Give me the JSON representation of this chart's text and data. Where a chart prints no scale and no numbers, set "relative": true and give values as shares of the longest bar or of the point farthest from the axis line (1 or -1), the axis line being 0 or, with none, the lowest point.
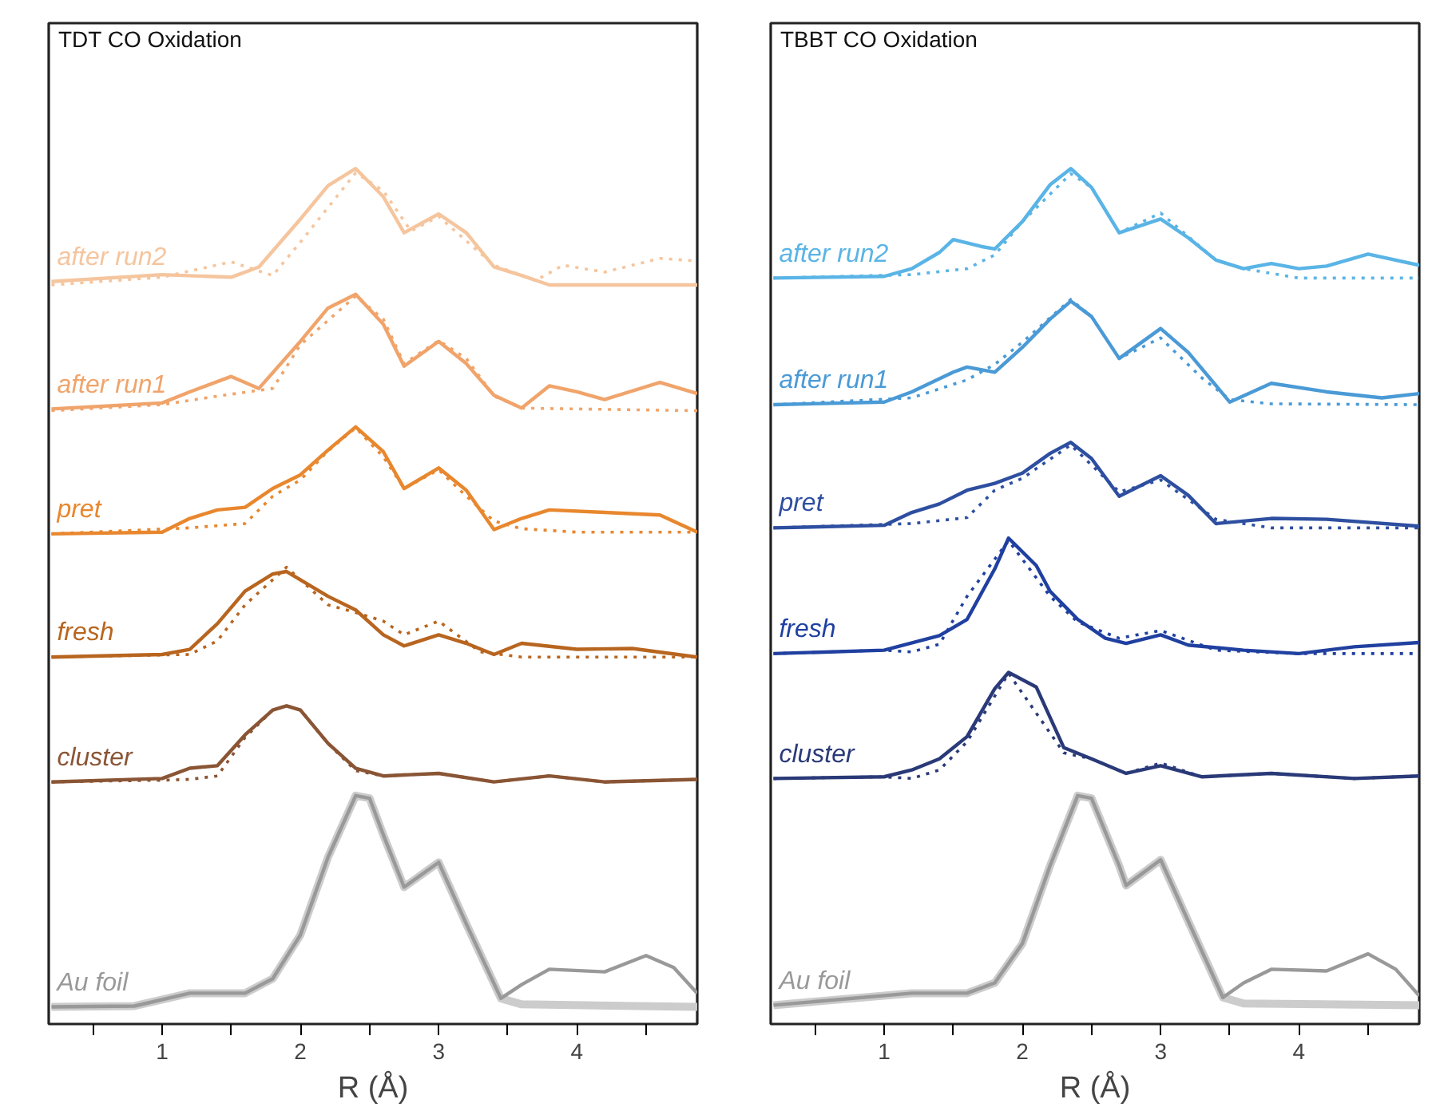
{
  "chart_data": [
    {
      "type": "line",
      "title": "TDT CO Oxidation",
      "xlabel": "R (Å)",
      "relative": true,
      "grid": false,
      "tick_labels": "x",
      "xlim": [
        0.18,
        4.87
      ],
      "xticks": [
        {
          "value": 0.5,
          "label": null
        },
        1,
        {
          "value": 1.5,
          "label": null
        },
        2,
        {
          "value": 2.5,
          "label": null
        },
        3,
        {
          "value": 3.5,
          "label": null
        },
        4,
        {
          "value": 4.5,
          "label": null
        }
      ],
      "series": [
        {
          "name": "after run2",
          "color": "#f5c59e",
          "line_style": "solid",
          "x": [
            0.2,
            1.0,
            1.5,
            1.7,
            2.0,
            2.2,
            2.4,
            2.6,
            2.75,
            3.0,
            3.2,
            3.4,
            3.6,
            3.8,
            4.2,
            4.87
          ],
          "values": [
            0.868,
            0.876,
            0.873,
            0.885,
            0.941,
            0.98,
            1.0,
            0.967,
            0.925,
            0.947,
            0.925,
            0.885,
            0.875,
            0.864,
            0.864,
            0.864
          ]
        },
        {
          "color": "#f5c59e",
          "line_style": "dotted",
          "x": [
            0.2,
            1.0,
            1.5,
            1.8,
            2.0,
            2.4,
            2.6,
            2.8,
            3.0,
            3.4,
            3.7,
            3.9,
            4.2,
            4.6,
            4.87
          ],
          "values": [
            0.864,
            0.873,
            0.891,
            0.875,
            0.914,
            0.995,
            0.974,
            0.927,
            0.944,
            0.887,
            0.869,
            0.887,
            0.879,
            0.895,
            0.892
          ]
        },
        {
          "name": "after run1",
          "color": "#f0a46b",
          "line_style": "solid",
          "x": [
            0.2,
            1.0,
            1.2,
            1.5,
            1.7,
            2.0,
            2.2,
            2.4,
            2.6,
            2.75,
            3.0,
            3.2,
            3.4,
            3.6,
            3.8,
            4.0,
            4.2,
            4.6,
            4.87
          ],
          "values": [
            0.719,
            0.726,
            0.739,
            0.757,
            0.743,
            0.798,
            0.837,
            0.853,
            0.818,
            0.769,
            0.798,
            0.772,
            0.735,
            0.72,
            0.746,
            0.739,
            0.73,
            0.75,
            0.737
          ]
        },
        {
          "color": "#f0a46b",
          "line_style": "dotted",
          "x": [
            0.2,
            1.0,
            1.4,
            1.8,
            2.0,
            2.4,
            2.6,
            2.75,
            3.0,
            3.2,
            3.4,
            3.6,
            4.0,
            4.87
          ],
          "values": [
            0.717,
            0.724,
            0.734,
            0.743,
            0.794,
            0.851,
            0.824,
            0.772,
            0.799,
            0.778,
            0.734,
            0.72,
            0.719,
            0.717
          ]
        },
        {
          "name": "pret",
          "color": "#e8872e",
          "line_style": "solid",
          "x": [
            0.2,
            1.0,
            1.2,
            1.4,
            1.6,
            1.8,
            2.0,
            2.2,
            2.4,
            2.6,
            2.75,
            3.0,
            3.2,
            3.4,
            3.6,
            3.8,
            4.2,
            4.6,
            4.87
          ],
          "values": [
            0.573,
            0.575,
            0.591,
            0.601,
            0.604,
            0.626,
            0.642,
            0.671,
            0.698,
            0.669,
            0.626,
            0.65,
            0.624,
            0.578,
            0.591,
            0.601,
            0.598,
            0.595,
            0.575
          ]
        },
        {
          "color": "#e8872e",
          "line_style": "dotted",
          "x": [
            0.2,
            1.2,
            1.6,
            1.8,
            2.0,
            2.2,
            2.4,
            2.6,
            2.75,
            3.0,
            3.2,
            3.4,
            3.6,
            4.0,
            4.87
          ],
          "values": [
            0.573,
            0.58,
            0.585,
            0.617,
            0.636,
            0.67,
            0.697,
            0.663,
            0.626,
            0.648,
            0.617,
            0.588,
            0.579,
            0.575,
            0.575
          ]
        },
        {
          "name": "fresh",
          "color": "#b8651f",
          "line_style": "solid",
          "x": [
            0.2,
            1.0,
            1.2,
            1.4,
            1.6,
            1.8,
            1.9,
            2.2,
            2.4,
            2.6,
            2.75,
            3.0,
            3.2,
            3.4,
            3.6,
            4.0,
            4.4,
            4.87
          ],
          "values": [
            0.429,
            0.432,
            0.438,
            0.468,
            0.506,
            0.526,
            0.529,
            0.5,
            0.484,
            0.455,
            0.442,
            0.455,
            0.445,
            0.432,
            0.445,
            0.438,
            0.439,
            0.429
          ]
        },
        {
          "color": "#b8651f",
          "line_style": "dotted",
          "x": [
            0.2,
            1.2,
            1.4,
            1.6,
            1.9,
            2.2,
            2.4,
            2.6,
            2.75,
            3.0,
            3.3,
            3.6,
            4.87
          ],
          "values": [
            0.429,
            0.432,
            0.448,
            0.49,
            0.534,
            0.49,
            0.481,
            0.471,
            0.455,
            0.471,
            0.435,
            0.429,
            0.429
          ]
        },
        {
          "name": "cluster",
          "color": "#8a5535",
          "line_style": "solid",
          "x": [
            0.2,
            1.0,
            1.2,
            1.4,
            1.6,
            1.8,
            1.9,
            2.0,
            2.2,
            2.4,
            2.6,
            3.0,
            3.4,
            3.8,
            4.2,
            4.87
          ],
          "values": [
            0.283,
            0.287,
            0.299,
            0.302,
            0.338,
            0.367,
            0.372,
            0.367,
            0.328,
            0.299,
            0.29,
            0.293,
            0.283,
            0.29,
            0.283,
            0.286
          ]
        },
        {
          "color": "#8a5535",
          "line_style": "dotted",
          "x": [
            0.2,
            1.0,
            1.2,
            1.4,
            1.6,
            1.8,
            1.9,
            2.0,
            2.2,
            2.4,
            2.6,
            3.0,
            3.4,
            3.8,
            4.2,
            4.87
          ],
          "values": [
            0.283,
            0.285,
            0.286,
            0.29,
            0.335,
            0.367,
            0.372,
            0.367,
            0.328,
            0.296,
            0.29,
            0.293,
            0.283,
            0.29,
            0.283,
            0.286
          ]
        },
        {
          "name": "Au foil",
          "color": "#999999",
          "line_style": "solid",
          "x": [
            0.2,
            0.8,
            1.2,
            1.6,
            1.8,
            2.0,
            2.2,
            2.4,
            2.5,
            2.6,
            2.75,
            3.0,
            3.2,
            3.45,
            3.6,
            3.8,
            4.2,
            4.5,
            4.7,
            4.87
          ],
          "values": [
            0.02,
            0.021,
            0.036,
            0.036,
            0.053,
            0.104,
            0.195,
            0.267,
            0.264,
            0.221,
            0.16,
            0.189,
            0.117,
            0.03,
            0.046,
            0.064,
            0.061,
            0.08,
            0.066,
            0.036
          ]
        },
        {
          "color": "#cccccc",
          "line_style": "solid",
          "x": [
            0.2,
            0.8,
            1.2,
            1.6,
            1.8,
            2.0,
            2.2,
            2.4,
            2.5,
            2.6,
            2.75,
            3.0,
            3.2,
            3.45,
            3.6,
            4.87
          ],
          "values": [
            0.02,
            0.021,
            0.036,
            0.036,
            0.053,
            0.104,
            0.195,
            0.267,
            0.264,
            0.221,
            0.16,
            0.189,
            0.117,
            0.03,
            0.023,
            0.02
          ]
        }
      ]
    },
    {
      "type": "line",
      "title": "TBBT CO Oxidation",
      "xlabel": "R (Å)",
      "relative": true,
      "grid": false,
      "tick_labels": "x",
      "xlim": [
        0.18,
        4.87
      ],
      "xticks": [
        {
          "value": 0.5,
          "label": null
        },
        1,
        {
          "value": 1.5,
          "label": null
        },
        2,
        {
          "value": 2.5,
          "label": null
        },
        3,
        {
          "value": 3.5,
          "label": null
        },
        4,
        {
          "value": 4.5,
          "label": null
        }
      ],
      "series": [
        {
          "name": "after run2",
          "color": "#5ab4e6",
          "line_style": "solid",
          "x": [
            0.2,
            1.0,
            1.2,
            1.4,
            1.5,
            1.7,
            1.8,
            2.0,
            2.2,
            2.35,
            2.5,
            2.7,
            3.0,
            3.2,
            3.4,
            3.6,
            3.8,
            4.0,
            4.2,
            4.5,
            4.87
          ],
          "values": [
            0.872,
            0.874,
            0.883,
            0.902,
            0.917,
            0.909,
            0.906,
            0.938,
            0.981,
            1.0,
            0.978,
            0.925,
            0.941,
            0.919,
            0.893,
            0.883,
            0.889,
            0.883,
            0.886,
            0.9,
            0.887
          ]
        },
        {
          "color": "#5ab4e6",
          "line_style": "dotted",
          "x": [
            0.2,
            1.2,
            1.6,
            1.8,
            2.0,
            2.35,
            2.5,
            2.7,
            3.0,
            3.4,
            3.6,
            4.0,
            4.87
          ],
          "values": [
            0.872,
            0.876,
            0.883,
            0.899,
            0.938,
            0.994,
            0.978,
            0.925,
            0.948,
            0.893,
            0.883,
            0.872,
            0.872
          ]
        },
        {
          "name": "after run1",
          "color": "#4a9ad6",
          "line_style": "solid",
          "x": [
            0.2,
            1.0,
            1.2,
            1.5,
            1.6,
            1.8,
            2.0,
            2.2,
            2.35,
            2.5,
            2.7,
            3.0,
            3.2,
            3.5,
            3.8,
            4.2,
            4.6,
            4.87
          ],
          "values": [
            0.724,
            0.727,
            0.739,
            0.762,
            0.768,
            0.762,
            0.791,
            0.824,
            0.845,
            0.827,
            0.778,
            0.813,
            0.785,
            0.727,
            0.749,
            0.739,
            0.732,
            0.737
          ]
        },
        {
          "color": "#4a9ad6",
          "line_style": "dotted",
          "x": [
            0.2,
            1.2,
            1.6,
            1.8,
            2.0,
            2.35,
            2.5,
            2.7,
            3.0,
            3.3,
            3.5,
            3.8,
            4.87
          ],
          "values": [
            0.724,
            0.732,
            0.753,
            0.771,
            0.797,
            0.847,
            0.827,
            0.778,
            0.802,
            0.755,
            0.73,
            0.725,
            0.724
          ]
        },
        {
          "name": "pret",
          "color": "#2e4fa0",
          "line_style": "solid",
          "x": [
            0.2,
            1.0,
            1.2,
            1.4,
            1.6,
            1.8,
            2.0,
            2.2,
            2.35,
            2.5,
            2.7,
            3.0,
            3.2,
            3.4,
            3.8,
            4.2,
            4.87
          ],
          "values": [
            0.58,
            0.583,
            0.598,
            0.608,
            0.624,
            0.632,
            0.644,
            0.667,
            0.68,
            0.661,
            0.617,
            0.641,
            0.618,
            0.585,
            0.591,
            0.59,
            0.582
          ]
        },
        {
          "color": "#2e4fa0",
          "line_style": "dotted",
          "x": [
            0.2,
            1.2,
            1.6,
            1.8,
            2.0,
            2.35,
            2.7,
            3.0,
            3.4,
            3.8,
            4.87
          ],
          "values": [
            0.58,
            0.585,
            0.592,
            0.624,
            0.638,
            0.677,
            0.622,
            0.636,
            0.59,
            0.58,
            0.58
          ]
        },
        {
          "name": "fresh",
          "color": "#2040a0",
          "line_style": "solid",
          "x": [
            0.2,
            1.0,
            1.4,
            1.6,
            1.8,
            1.9,
            2.1,
            2.2,
            2.4,
            2.6,
            2.75,
            3.0,
            3.2,
            3.6,
            4.0,
            4.4,
            4.87
          ],
          "values": [
            0.433,
            0.437,
            0.454,
            0.473,
            0.532,
            0.568,
            0.536,
            0.506,
            0.473,
            0.451,
            0.445,
            0.455,
            0.443,
            0.437,
            0.433,
            0.441,
            0.446
          ]
        },
        {
          "color": "#2040a0",
          "line_style": "dotted",
          "x": [
            0.2,
            1.0,
            1.2,
            1.4,
            1.6,
            1.9,
            2.2,
            2.4,
            2.7,
            3.0,
            3.4,
            4.0,
            4.87
          ],
          "values": [
            0.433,
            0.437,
            0.435,
            0.444,
            0.5,
            0.565,
            0.5,
            0.47,
            0.451,
            0.46,
            0.437,
            0.433,
            0.433
          ]
        },
        {
          "name": "cluster",
          "color": "#2a3a78",
          "line_style": "solid",
          "x": [
            0.2,
            1.0,
            1.2,
            1.4,
            1.6,
            1.8,
            1.9,
            2.1,
            2.3,
            2.5,
            2.75,
            3.0,
            3.3,
            3.8,
            4.4,
            4.87
          ],
          "values": [
            0.287,
            0.289,
            0.297,
            0.31,
            0.336,
            0.392,
            0.411,
            0.394,
            0.323,
            0.31,
            0.293,
            0.302,
            0.289,
            0.293,
            0.287,
            0.29
          ]
        },
        {
          "color": "#2a3a78",
          "line_style": "dotted",
          "x": [
            0.2,
            1.0,
            1.2,
            1.4,
            1.6,
            1.9,
            2.3,
            2.5,
            2.75,
            3.0,
            3.3,
            3.8,
            4.4,
            4.87
          ],
          "values": [
            0.287,
            0.289,
            0.287,
            0.297,
            0.33,
            0.41,
            0.317,
            0.31,
            0.293,
            0.305,
            0.289,
            0.293,
            0.287,
            0.29
          ]
        },
        {
          "name": "Au foil",
          "color": "#999999",
          "line_style": "solid",
          "x": [
            0.2,
            1.2,
            1.6,
            1.8,
            2.0,
            2.2,
            2.4,
            2.5,
            2.7,
            2.75,
            3.0,
            3.2,
            3.45,
            3.6,
            3.8,
            4.2,
            4.5,
            4.7,
            4.87
          ],
          "values": [
            0.022,
            0.036,
            0.036,
            0.048,
            0.094,
            0.185,
            0.267,
            0.264,
            0.185,
            0.162,
            0.192,
            0.12,
            0.031,
            0.048,
            0.064,
            0.062,
            0.082,
            0.064,
            0.033
          ]
        },
        {
          "color": "#cccccc",
          "line_style": "solid",
          "x": [
            0.2,
            1.2,
            1.6,
            1.8,
            2.0,
            2.2,
            2.4,
            2.5,
            2.7,
            2.75,
            3.0,
            3.2,
            3.45,
            3.6,
            4.87
          ],
          "values": [
            0.022,
            0.036,
            0.036,
            0.048,
            0.094,
            0.185,
            0.267,
            0.264,
            0.185,
            0.162,
            0.192,
            0.12,
            0.031,
            0.024,
            0.022
          ]
        }
      ]
    }
  ]
}
